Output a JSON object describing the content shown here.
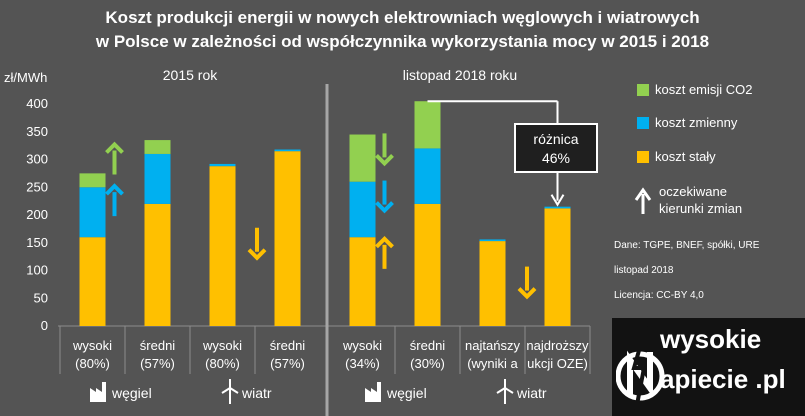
{
  "title": {
    "line1": "Koszt produkcji energii w nowych elektrowniach węglowych i wiatrowych",
    "line2": "w Polsce w zależności od współczynnika wykorzystania mocy w 2015 i 2018"
  },
  "chart_data": {
    "type": "bar",
    "stacked": true,
    "ylabel": "zł/MWh",
    "ylim": [
      0,
      400
    ],
    "yticks": [
      0,
      50,
      100,
      150,
      200,
      250,
      300,
      350,
      400
    ],
    "panels": [
      "2015 rok",
      "listopad 2018 roku"
    ],
    "categories": [
      {
        "line1": "wysoki",
        "line2": "(80%)"
      },
      {
        "line1": "średni",
        "line2": "(57%)"
      },
      {
        "line1": "wysoki",
        "line2": "(80%)"
      },
      {
        "line1": "średni",
        "line2": "(57%)"
      },
      {
        "line1": "wysoki",
        "line2": "(34%)"
      },
      {
        "line1": "średni",
        "line2": "(30%)"
      },
      {
        "line1": "najtańszy",
        "line2": "(wyniki a"
      },
      {
        "line1": "najdroższy",
        "line2": "ukcji OZE)"
      }
    ],
    "series": [
      {
        "name": "koszt stały",
        "color": "#ffc000",
        "values": [
          160,
          220,
          288,
          315,
          160,
          220,
          153,
          212
        ]
      },
      {
        "name": "koszt zmienny",
        "color": "#00b0f0",
        "values": [
          90,
          90,
          4,
          3,
          100,
          100,
          3,
          3
        ]
      },
      {
        "name": "koszt emisji CO2",
        "color": "#92d050",
        "values": [
          25,
          25,
          0,
          0,
          85,
          85,
          0,
          0
        ]
      }
    ],
    "legend_order": [
      "koszt emisji CO2",
      "koszt zmienny",
      "koszt stały"
    ],
    "legend_position": "right",
    "arrows": [
      {
        "category": 0,
        "direction": "up",
        "color": "#92d050",
        "level": 300
      },
      {
        "category": 0,
        "direction": "up",
        "color": "#00b0f0",
        "level": 225
      },
      {
        "category": 3,
        "direction": "down",
        "color": "#ffc000",
        "level": 150
      },
      {
        "category": 4,
        "direction": "down",
        "color": "#92d050",
        "level": 320
      },
      {
        "category": 4,
        "direction": "down",
        "color": "#00b0f0",
        "level": 235
      },
      {
        "category": 4,
        "direction": "up",
        "color": "#ffc000",
        "level": 130
      },
      {
        "category": 6,
        "direction": "down",
        "color": "#ffc000",
        "level": 80
      }
    ],
    "annotation": {
      "label": "różnica",
      "value": "46%",
      "from_category": 5,
      "to_category": 7
    },
    "arrow_legend": {
      "line1": "oczekiwane",
      "line2": "kierunki zmian"
    },
    "groups": [
      {
        "label": "węgiel",
        "icon": "factory-icon"
      },
      {
        "label": "wiatr",
        "icon": "wind-turbine-icon"
      },
      {
        "label": "węgiel",
        "icon": "factory-icon"
      },
      {
        "label": "wiatr",
        "icon": "wind-turbine-icon"
      }
    ],
    "notes": [
      "Dane: TGPE, BNEF, spółki, URE",
      "listopad 2018",
      "Licencja: CC-BY  4,0"
    ]
  },
  "logo": {
    "line1": "wysokie",
    "line2": "apiecie .pl",
    "icon": "logo-n-icon"
  }
}
